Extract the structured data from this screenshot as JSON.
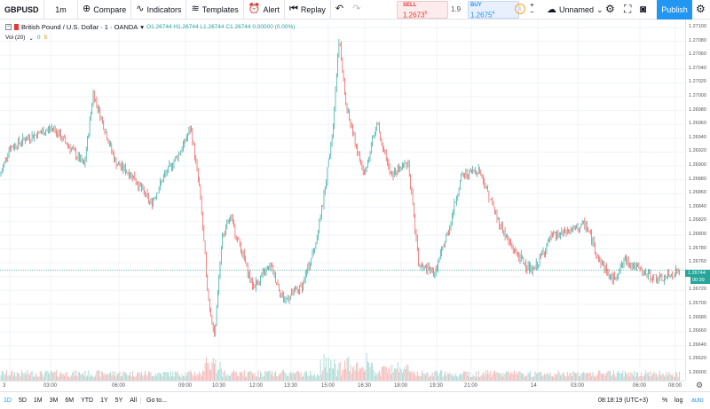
{
  "toolbar": {
    "symbol": "GBPUSD",
    "interval": "1m",
    "compare": "Compare",
    "indicators": "Indicators",
    "templates": "Templates",
    "alert": "Alert",
    "replay": "Replay",
    "sell_label": "SELL",
    "sell_price": "1.2673",
    "sell_price_sup": "5",
    "spread": "1.9",
    "buy_label": "BUY",
    "buy_price": "1.2675",
    "buy_price_sup": "4",
    "layout_name": "Unnamed",
    "publish": "Publish"
  },
  "legend": {
    "title": "British Pound / U.S. Dollar · 1 · OANDA",
    "ohlc": "O1.26744  H1.26744  L1.26744  C1.26744  0.00000 (0.00%)",
    "vol_label": "Vol (20)",
    "vol_val1": "0",
    "vol_val2": "5"
  },
  "price_axis": {
    "ticks": [
      "1.27100",
      "1.27080",
      "1.27060",
      "1.27040",
      "1.27020",
      "1.27000",
      "1.26980",
      "1.26960",
      "1.26940",
      "1.26920",
      "1.26900",
      "1.26880",
      "1.26860",
      "1.26840",
      "1.26820",
      "1.26800",
      "1.26780",
      "1.26760",
      "1.26740",
      "1.26720",
      "1.26700",
      "1.26680",
      "1.26660",
      "1.26640",
      "1.26620",
      "1.26600"
    ],
    "last_price": "1.26744",
    "countdown": "00:39"
  },
  "time_axis": {
    "ticks": [
      "3",
      "03:00",
      "06:00",
      "09:00",
      "10:30",
      "12:00",
      "13:30",
      "15:00",
      "16:30",
      "18:00",
      "19:30",
      "21:00",
      "14",
      "03:00",
      "06:00",
      "08:00"
    ]
  },
  "bottombar": {
    "ranges": [
      "1D",
      "5D",
      "1M",
      "3M",
      "6M",
      "YTD",
      "1Y",
      "5Y",
      "All"
    ],
    "goto": "Go to...",
    "clock": "08:18:19 (UTC+3)",
    "pct": "%",
    "log": "log",
    "auto": "auto"
  },
  "colors": {
    "up": "#26a69a",
    "down": "#ef5350",
    "accent": "#2196f3"
  }
}
